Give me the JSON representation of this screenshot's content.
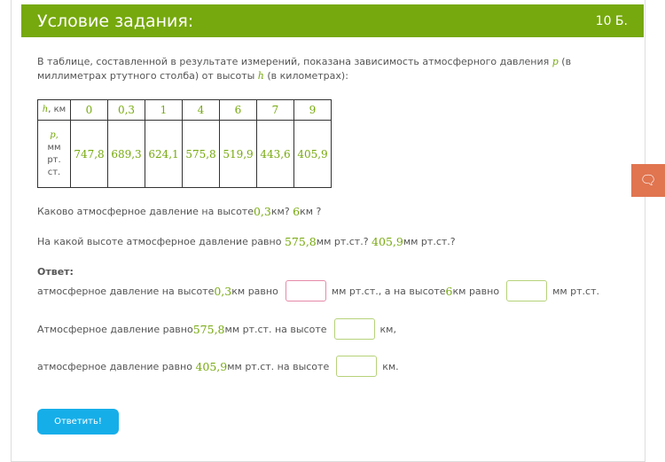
{
  "header": {
    "title": "Условие задания:",
    "points": "10 Б."
  },
  "intro": {
    "part1": "В таблице, составленной в результате измерений, показана зависимость атмосферного давления ",
    "p": "p",
    "part2": " (в миллиметрах ртутного столба) от высоты ",
    "h": "h",
    "part3": " (в километрах):"
  },
  "table": {
    "h_label": "h",
    "h_unit": ", км",
    "p_label": "p,",
    "p_unit": "мм рт. ст.",
    "heights": [
      "0",
      "0,3",
      "1",
      "4",
      "6",
      "7",
      "9"
    ],
    "pressures": [
      "747,8",
      "689,3",
      "624,1",
      "575,8",
      "519,9",
      "443,6",
      "405,9"
    ]
  },
  "q1": {
    "a": "Каково атмосферное давление на высоте ",
    "v1": "0,3",
    "b": " км? ",
    "v2": "6",
    "c": " км ?"
  },
  "q2": {
    "a": "На какой высоте атмосферное давление равно ",
    "v1": "575,8",
    "b": " мм рт.ст.? ",
    "v2": "405,9",
    "c": "мм рт.ст.?"
  },
  "answer": {
    "label": "Ответ:",
    "l1": {
      "a": "атмосферное давление на высоте ",
      "v1": "0,3",
      "b": " км равно",
      "c": "мм рт.ст., а на высоте ",
      "v2": "6",
      "d": " км равно",
      "e": "мм рт.ст."
    },
    "l2": {
      "a": "Атмосферное давление равно ",
      "v": "575,8",
      "b": " мм рт.ст. на высоте",
      "c": "км,"
    },
    "l3": {
      "a": "атмосферное давление равно ",
      "v": "405,9",
      "b": " мм рт.ст. на высоте",
      "c": "км."
    }
  },
  "submit": "Ответить!",
  "feedback_icon": "chat-bubbles-icon"
}
